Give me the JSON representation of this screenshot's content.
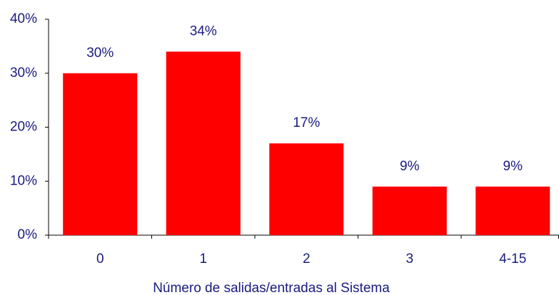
{
  "chart_data": {
    "type": "bar",
    "x_label": "Número de salidas/entradas al Sistema",
    "categories": [
      "0",
      "1",
      "2",
      "3",
      "4-15"
    ],
    "values": [
      30,
      34,
      17,
      9,
      9
    ],
    "value_labels": [
      "30%",
      "34%",
      "17%",
      "9%",
      "9%"
    ],
    "color": "#ff0000",
    "ylim": [
      0,
      40
    ],
    "yticks": [
      {
        "value": 0,
        "label": "0%"
      },
      {
        "value": 10,
        "label": "10%"
      },
      {
        "value": 20,
        "label": "20%"
      },
      {
        "value": 30,
        "label": "30%"
      },
      {
        "value": 40,
        "label": "40%"
      }
    ],
    "grid": false
  }
}
